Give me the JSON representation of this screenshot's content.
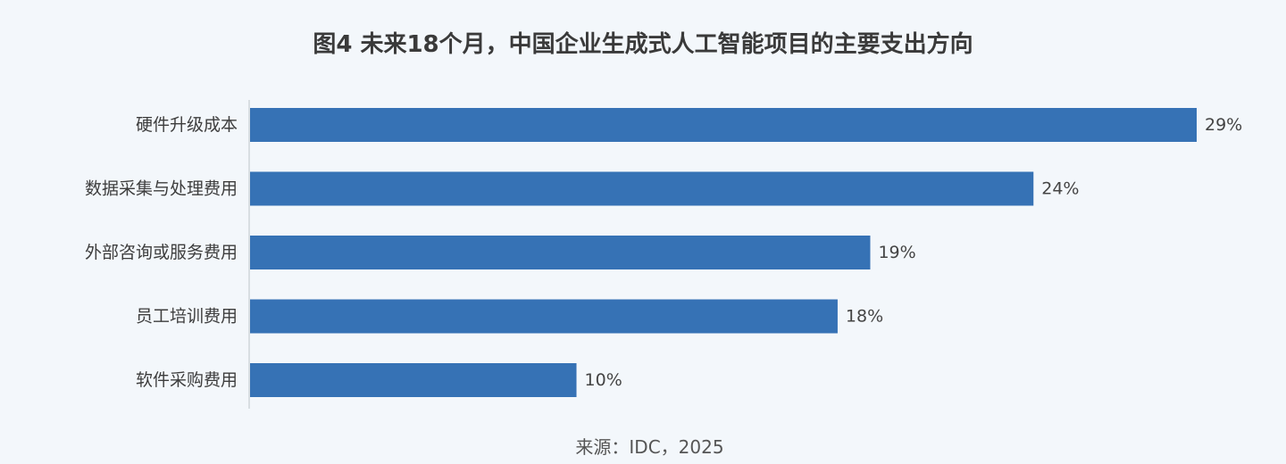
{
  "chart_data": {
    "type": "bar",
    "orientation": "horizontal",
    "title": "图4 未来18个月，中国企业生成式人工智能项目的主要支出方向",
    "categories": [
      "硬件升级成本",
      "数据采集与处理费用",
      "外部咨询或服务费用",
      "员工培训费用",
      "软件采购费用"
    ],
    "values": [
      29,
      24,
      19,
      18,
      10
    ],
    "value_labels": [
      "29%",
      "24%",
      "19%",
      "18%",
      "10%"
    ],
    "unit": "%",
    "xlim": [
      0,
      29
    ],
    "grid": false,
    "legend": "none",
    "bar_color": "#3672b5"
  },
  "source": "来源：IDC，2025"
}
